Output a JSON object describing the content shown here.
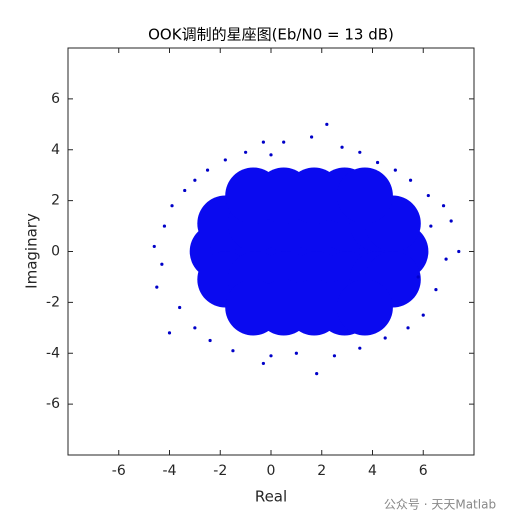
{
  "chart_data": {
    "type": "scatter",
    "title": "OOK调制的星座图(Eb/N0 = 13 dB)",
    "xlabel": "Real",
    "ylabel": "Imaginary",
    "xlim": [
      -8,
      8
    ],
    "ylim": [
      -8,
      8
    ],
    "xticks": [
      -6,
      -4,
      -2,
      0,
      2,
      4,
      6
    ],
    "yticks": [
      -6,
      -4,
      -2,
      0,
      2,
      4,
      6
    ],
    "grid": false,
    "series": [
      {
        "color": "#0a0af0",
        "marker_radius": 28,
        "x": [
          -2.1,
          -0.9,
          0.3,
          1.5,
          2.7,
          3.9,
          5.1,
          -1.8,
          -0.6,
          0.6,
          1.8,
          3.0,
          4.2,
          4.8,
          -1.8,
          -0.6,
          0.6,
          1.8,
          3.0,
          4.2,
          4.8,
          -0.7,
          0.5,
          1.7,
          2.9,
          3.7,
          -0.7,
          0.5,
          1.7,
          2.9,
          3.7
        ],
        "y": [
          0,
          0,
          0,
          0,
          0,
          0,
          0,
          1.1,
          1.1,
          1.1,
          1.1,
          1.1,
          1.1,
          1.1,
          -1.1,
          -1.1,
          -1.1,
          -1.1,
          -1.1,
          -1.1,
          -1.1,
          2.2,
          2.2,
          2.2,
          2.2,
          2.2,
          -2.2,
          -2.2,
          -2.2,
          -2.2,
          -2.2
        ]
      },
      {
        "color": "#0000c8",
        "marker_radius": 1.6,
        "x": [
          -4.6,
          -4.3,
          -4.5,
          -4.2,
          -3.9,
          -3.6,
          -3.0,
          -2.5,
          -1.8,
          -1.0,
          0.0,
          0.5,
          -0.3,
          2.2,
          1.6,
          2.8,
          3.5,
          4.2,
          4.9,
          5.5,
          6.2,
          6.8,
          7.4,
          6.9,
          7.1,
          6.5,
          6.0,
          5.4,
          4.5,
          3.5,
          2.5,
          1.8,
          1.0,
          0.0,
          -0.3,
          -1.5,
          -2.4,
          -3.0,
          -4.0,
          5.8,
          6.3,
          -3.4
        ],
        "y": [
          0.2,
          -0.5,
          -1.4,
          1.0,
          1.8,
          -2.2,
          2.8,
          3.2,
          3.6,
          3.9,
          3.8,
          4.3,
          4.3,
          5.0,
          4.5,
          4.1,
          3.9,
          3.5,
          3.2,
          2.8,
          2.2,
          1.8,
          0.0,
          -0.3,
          1.2,
          -1.5,
          -2.5,
          -3.0,
          -3.4,
          -3.8,
          -4.1,
          -4.8,
          -4.0,
          -4.1,
          -4.4,
          -3.9,
          -3.5,
          -3.0,
          -3.2,
          -1.0,
          1.0,
          2.4
        ]
      }
    ],
    "watermark": "公众号 · 天天Matlab"
  }
}
